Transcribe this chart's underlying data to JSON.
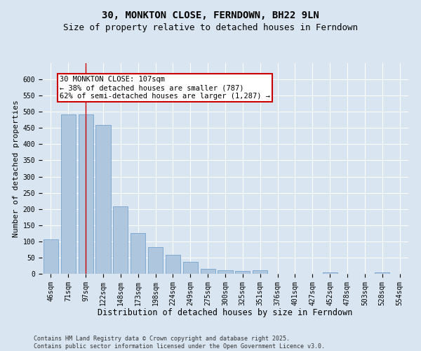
{
  "title1": "30, MONKTON CLOSE, FERNDOWN, BH22 9LN",
  "title2": "Size of property relative to detached houses in Ferndown",
  "xlabel": "Distribution of detached houses by size in Ferndown",
  "ylabel": "Number of detached properties",
  "categories": [
    "46sqm",
    "71sqm",
    "97sqm",
    "122sqm",
    "148sqm",
    "173sqm",
    "198sqm",
    "224sqm",
    "249sqm",
    "275sqm",
    "300sqm",
    "325sqm",
    "351sqm",
    "376sqm",
    "401sqm",
    "427sqm",
    "452sqm",
    "478sqm",
    "503sqm",
    "528sqm",
    "554sqm"
  ],
  "values": [
    107,
    492,
    492,
    460,
    208,
    125,
    83,
    58,
    37,
    15,
    10,
    8,
    10,
    0,
    0,
    0,
    5,
    0,
    0,
    5,
    0
  ],
  "bar_color": "#aec6de",
  "bar_edge_color": "#6699cc",
  "bar_edge_width": 0.5,
  "vline_x_index": 2,
  "vline_color": "#cc0000",
  "annotation_line1": "30 MONKTON CLOSE: 107sqm",
  "annotation_line2": "← 38% of detached houses are smaller (787)",
  "annotation_line3": "62% of semi-detached houses are larger (1,287) →",
  "annotation_box_color": "#ffffff",
  "annotation_box_edge": "#cc0000",
  "ylim_max": 650,
  "yticks": [
    0,
    50,
    100,
    150,
    200,
    250,
    300,
    350,
    400,
    450,
    500,
    550,
    600
  ],
  "bg_color": "#d9e5f0",
  "footer": "Contains HM Land Registry data © Crown copyright and database right 2025.\nContains public sector information licensed under the Open Government Licence v3.0.",
  "title1_fontsize": 10,
  "title2_fontsize": 9,
  "xlabel_fontsize": 8.5,
  "ylabel_fontsize": 8,
  "tick_fontsize": 7,
  "annotation_fontsize": 7.5,
  "footer_fontsize": 6
}
